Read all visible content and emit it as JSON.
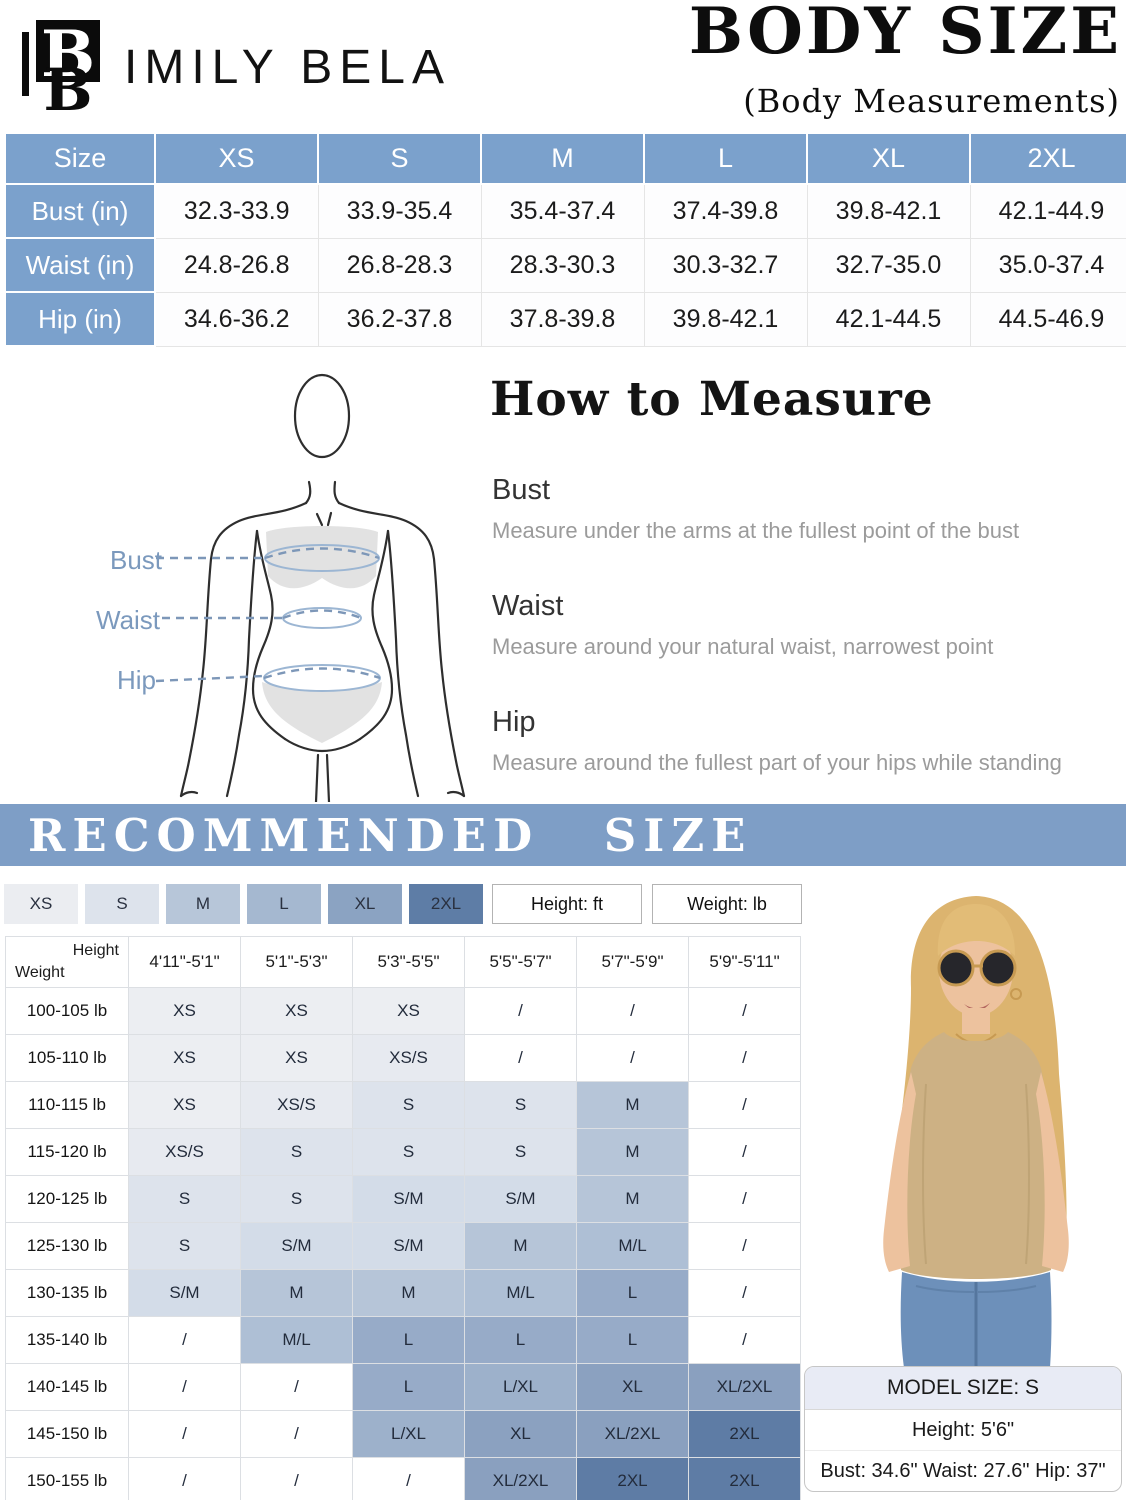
{
  "brand": {
    "name": "IMILY BELA",
    "logo_letter": "B"
  },
  "title": {
    "main": "BODY SIZE",
    "sub": "(Body Measurements)"
  },
  "size_table": {
    "columns": [
      "Size",
      "XS",
      "S",
      "M",
      "L",
      "XL",
      "2XL"
    ],
    "rows": [
      {
        "label": "Bust (in)",
        "values": [
          "32.3-33.9",
          "33.9-35.4",
          "35.4-37.4",
          "37.4-39.8",
          "39.8-42.1",
          "42.1-44.9"
        ]
      },
      {
        "label": "Waist (in)",
        "values": [
          "24.8-26.8",
          "26.8-28.3",
          "28.3-30.3",
          "30.3-32.7",
          "32.7-35.0",
          "35.0-37.4"
        ]
      },
      {
        "label": "Hip (in)",
        "values": [
          "34.6-36.2",
          "36.2-37.8",
          "37.8-39.8",
          "39.8-42.1",
          "42.1-44.5",
          "44.5-46.9"
        ]
      }
    ]
  },
  "how_to_measure": {
    "title": "How to Measure",
    "diagram_labels": {
      "bust": "Bust",
      "waist": "Waist",
      "hip": "Hip"
    },
    "sections": [
      {
        "label": "Bust",
        "text": "Measure under the arms at the fullest point of the bust"
      },
      {
        "label": "Waist",
        "text": "Measure around your natural waist, narrowest point"
      },
      {
        "label": "Hip",
        "text": "Measure around the fullest part of your hips while standing"
      }
    ]
  },
  "recommended": {
    "banner": "RECOMMENDED SIZE",
    "legend": [
      {
        "label": "XS",
        "color": "#ebedf1"
      },
      {
        "label": "S",
        "color": "#dde3ec"
      },
      {
        "label": "M",
        "color": "#b7c6d9"
      },
      {
        "label": "L",
        "color": "#a5b8d0"
      },
      {
        "label": "XL",
        "color": "#8ba3c2"
      },
      {
        "label": "2XL",
        "color": "#5e7da6"
      }
    ],
    "unit_boxes": [
      "Height: ft",
      "Weight: lb"
    ],
    "matrix": {
      "corner": {
        "top": "Height",
        "bottom": "Weight"
      },
      "height_columns": [
        "4'11\"-5'1\"",
        "5'1\"-5'3\"",
        "5'3\"-5'5\"",
        "5'5\"-5'7\"",
        "5'7\"-5'9\"",
        "5'9\"-5'11\""
      ],
      "weight_rows": [
        "100-105 lb",
        "105-110 lb",
        "110-115 lb",
        "115-120 lb",
        "120-125 lb",
        "125-130 lb",
        "130-135 lb",
        "135-140 lb",
        "140-145 lb",
        "145-150 lb",
        "150-155 lb"
      ],
      "cells": [
        [
          "XS",
          "XS",
          "XS",
          "/",
          "/",
          "/"
        ],
        [
          "XS",
          "XS",
          "XS/S",
          "/",
          "/",
          "/"
        ],
        [
          "XS",
          "XS/S",
          "S",
          "S",
          "M",
          "/"
        ],
        [
          "XS/S",
          "S",
          "S",
          "S",
          "M",
          "/"
        ],
        [
          "S",
          "S",
          "S/M",
          "S/M",
          "M",
          "/"
        ],
        [
          "S",
          "S/M",
          "S/M",
          "M",
          "M/L",
          "/"
        ],
        [
          "S/M",
          "M",
          "M",
          "M/L",
          "L",
          "/"
        ],
        [
          "/",
          "M/L",
          "L",
          "L",
          "L",
          "/"
        ],
        [
          "/",
          "/",
          "L",
          "L/XL",
          "XL",
          "XL/2XL"
        ],
        [
          "/",
          "/",
          "L/XL",
          "XL",
          "XL/2XL",
          "2XL"
        ],
        [
          "/",
          "/",
          "/",
          "XL/2XL",
          "2XL",
          "2XL"
        ]
      ],
      "cell_colors": {
        "XS": "#ecEEf2",
        "XS/S": "#e7eaf0",
        "S": "#dde3ec",
        "S/M": "#d3dce8",
        "M": "#b6c5d8",
        "M/L": "#aebfd5",
        "L": "#97abc8",
        "L/XL": "#9db1cb",
        "XL": "#8ba1c0",
        "XL/2XL": "#8aa0bf",
        "2XL": "#5e7ca5",
        "/": "#ffffff"
      }
    }
  },
  "model": {
    "size_label": "MODEL SIZE: S",
    "height": "Height: 5'6\"",
    "measurements": "Bust: 34.6\" Waist: 27.6\" Hip: 37\""
  },
  "colors": {
    "table_header_blue": "#7ba1cc",
    "banner_blue": "#7e9ec6",
    "diagram_label_blue": "#7b99bd"
  }
}
